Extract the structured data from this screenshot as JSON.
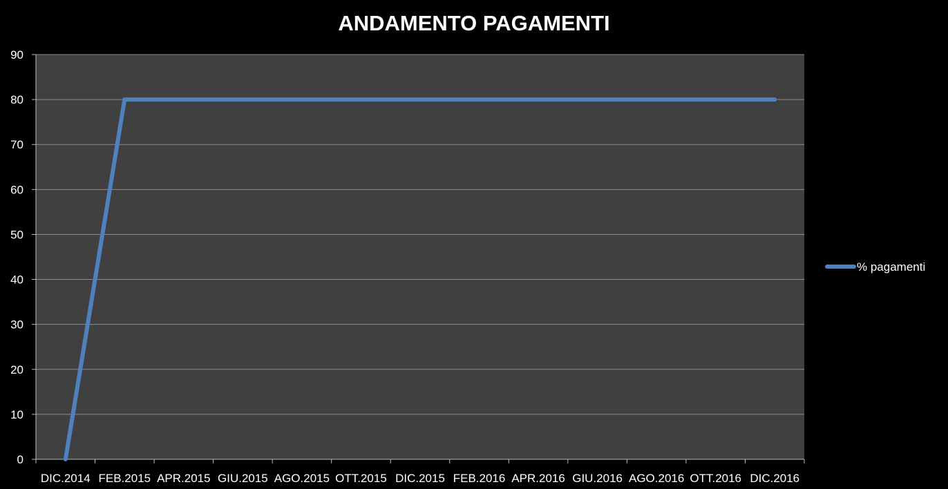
{
  "chart_data": {
    "type": "line",
    "title": "ANDAMENTO PAGAMENTI",
    "xlabel": "",
    "ylabel": "",
    "x_tick_labels": [
      "DIC.2014",
      "FEB.2015",
      "APR.2015",
      "GIU.2015",
      "AGO.2015",
      "OTT.2015",
      "DIC.2015",
      "FEB.2016",
      "APR.2016",
      "GIU.2016",
      "AGO.2016",
      "OTT.2016",
      "DIC.2016"
    ],
    "x_range": [
      "2014-12",
      "2016-12"
    ],
    "y_ticks": [
      0,
      10,
      20,
      30,
      40,
      50,
      60,
      70,
      80,
      90
    ],
    "ylim": [
      0,
      90
    ],
    "grid": true,
    "legend_position": "right",
    "series": [
      {
        "name": "% pagamenti",
        "color": "#4f81bd",
        "points": [
          {
            "x": "2014-12",
            "y": 0
          },
          {
            "x": "2015-02",
            "y": 80
          },
          {
            "x": "2016-12",
            "y": 80
          }
        ]
      }
    ],
    "colors": {
      "page_background": "#000000",
      "plot_background": "#404040",
      "gridline": "#8c8c8c",
      "axis": "#bfbfbf",
      "text": "#ffffff"
    }
  }
}
